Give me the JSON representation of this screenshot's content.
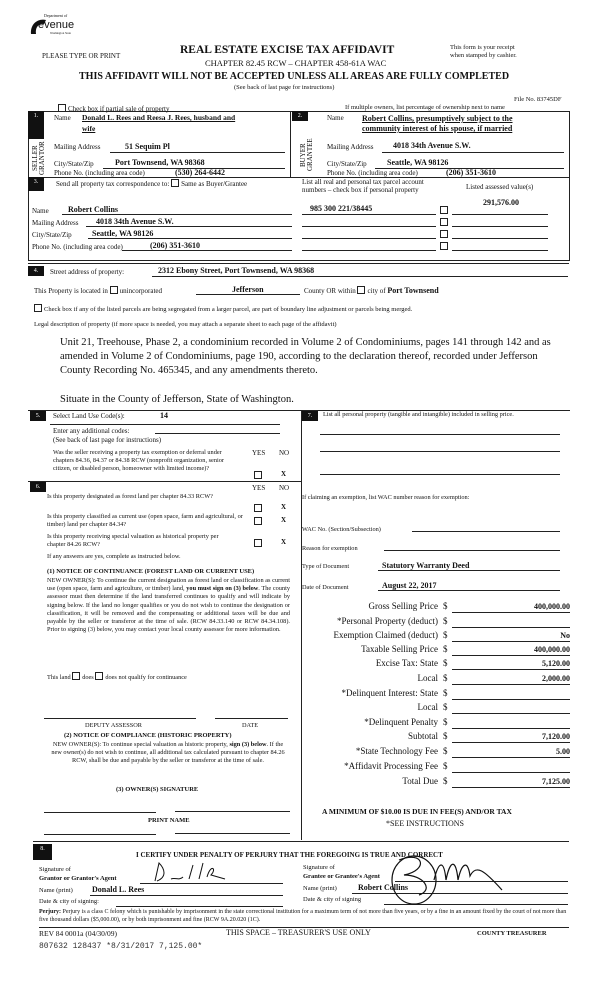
{
  "header": {
    "logo_line1": "Department of",
    "logo_word": "Revenue",
    "logo_line3": "Washington State",
    "please": "PLEASE TYPE OR PRINT",
    "title": "REAL ESTATE EXCISE TAX AFFIDAVIT",
    "chapter": "CHAPTER 82.45 RCW – CHAPTER 458-61A WAC",
    "warning": "THIS AFFIDAVIT WILL NOT BE ACCEPTED UNLESS ALL AREAS ARE FULLY COMPLETED",
    "see_back": "(See back of last page for instructions)",
    "receipt1": "This form is your receipt",
    "receipt2": "when stamped by cashier.",
    "file_no": "File No. 83745DF",
    "partial": "Check box if partial sale of property",
    "multiple": "If multiple owners, list percentage of ownership next to name"
  },
  "seller": {
    "num": "1.",
    "side": "SELLER GRANTOR",
    "name_label": "Name",
    "name1": "Donald L. Rees and Reesa J. Rees, husband and",
    "name2": "wife",
    "addr_label": "Mailing Address",
    "addr": "51 Sequim Pl",
    "city_label": "City/State/Zip",
    "city": "Port Townsend, WA 98368",
    "phone_label": "Phone No. (including area code)",
    "phone": "(530) 264-6442"
  },
  "buyer": {
    "num": "2.",
    "side": "BUYER GRANTEE",
    "name_label": "Name",
    "name1": "Robert Collins, presumptively subject to the",
    "name2": "community interest of his spouse, if married",
    "addr_label": "Mailing Address",
    "addr": "4018 34th Avenue S.W.",
    "city_label": "City/State/Zip",
    "city": "Seattle, WA 98126",
    "phone_label": "Phone No. (including area code)",
    "phone": "(206) 351-3610"
  },
  "section3": {
    "num": "3.",
    "send": "Send all property tax correspondence to:",
    "same": "Same as Buyer/Grantee",
    "list1": "List all real and personal tax parcel account",
    "list2": "numbers – check box if personal property",
    "assessed": "Listed assessed value(s)",
    "name_label": "Name",
    "name": "Robert  Collins",
    "addr_label": "Mailing Address",
    "addr": "4018 34th Avenue S.W.",
    "city_label": "City/State/Zip",
    "city": "Seattle, WA 98126",
    "phone_label": "Phone No. (including area code)",
    "phone": "(206) 351-3610",
    "parcel": "985 300 221/38445",
    "value": "291,576.00"
  },
  "section4": {
    "num": "4.",
    "street_label": "Street address of property:",
    "street": "2312 Ebony Street, Port Townsend, WA  98368",
    "located": "This Property is located in",
    "uninc": "unincorporated",
    "county": "Jefferson",
    "county_or": "County OR  within",
    "city_of": "city of",
    "city": "Port Townsend",
    "segregated": "Check box if any of the listed parcels are being segregated from a larger parcel, are part of boundary line adjustment or parcels being merged.",
    "legal_label": "Legal description of property (if more space is needed, you may attach a separate sheet to each page of the affidavit)",
    "legal": "Unit 21, Treehouse, Phase 2, a condominium recorded in Volume 2 of Condominiums, pages 141 through 142 and as amended in Volume 2 of Condominiums, page 190, according to the declaration thereof, recorded under Jefferson County Recording No. 465345, and any amendments thereto.",
    "situate": "Situate in the County of Jefferson, State of Washington."
  },
  "section5": {
    "num": "5.",
    "land_use": "Select Land Use Code(s):",
    "code": "14",
    "additional": "Enter any additional codes:",
    "see_back": "(See back of last page for instructions)",
    "yes": "YES",
    "no": "NO",
    "q1": "Was the seller receiving a property tax exemption or deferral under chapters 84.36, 84.37 or 84.38 RCW (nonprofit organization, senior citizen, or disabled person, homeowner with limited income)?",
    "a1": "X"
  },
  "section6": {
    "num": "6.",
    "yes": "YES",
    "no": "NO",
    "q1": "Is this property designated as forest land per chapter 84.33 RCW?",
    "q2": "Is this property classified as current use (open space, farm and agricultural, or timber) land per chapter 84.34?",
    "q3": "Is this property receiving special valuation as historical property per chapter 84.26 RCW?",
    "answers": [
      "X",
      "X",
      "X"
    ],
    "if_yes": "If any answers are yes, complete as instructed below.",
    "notice1_title": "(1) NOTICE OF CONTINUANCE (FOREST LAND OR CURRENT USE)",
    "notice1_a": "NEW OWNER(S): To continue the current designation as forest land or classification as current use (open space, farm and agriculture, or timber) land, ",
    "notice1_b": "you must sign on (3) below",
    "notice1_c": ". The county assessor must then determine if the land transferred continues to qualify and will indicate by signing below. If the land no longer qualifies or you do not wish to continue the designation or classification, it will be removed and the compensating or additional taxes will be due and payable by the seller or transferor at the time of sale. (RCW 84.33.140 or RCW 84.34.108). Prior to signing (3) below, you may contact your local county assessor for more information.",
    "this_land": "This land",
    "does": "does",
    "does_not": "does not  qualify for continuance",
    "deputy": "DEPUTY ASSESSOR",
    "date": "DATE",
    "notice2_title": "(2) NOTICE OF COMPLIANCE (HISTORIC PROPERTY)",
    "notice2_a": "NEW OWNER(S): To continue special valuation as historic property, ",
    "notice2_b": "sign (3) below",
    "notice2_c": ". If the new owner(s) do not wish to continue, all additional tax calculated pursuant to chapter 84.26 RCW, shall be due and payable by the seller or transferor at the time of sale.",
    "owner_sig": "(3)  OWNER(S) SIGNATURE",
    "print_name": "PRINT NAME"
  },
  "section7": {
    "num": "7.",
    "list": "List all personal property (tangible and intangible) included in selling price.",
    "exemption": "If claiming an exemption, list WAC number reason for exemption:",
    "wac": "WAC No. (Section/Subsection)",
    "reason": "Reason for exemption",
    "doc_type_label": "Type of Document",
    "doc_type": "Statutory Warranty Deed",
    "doc_date_label": "Date of Document",
    "doc_date": "August 22, 2017"
  },
  "fees": [
    {
      "label": "Gross Selling Price",
      "value": "400,000.00"
    },
    {
      "label": "*Personal Property (deduct)",
      "value": ""
    },
    {
      "label": "Exemption Claimed (deduct)",
      "value": "No"
    },
    {
      "label": "Taxable Selling Price",
      "value": "400,000.00"
    },
    {
      "label": "Excise Tax:  State",
      "value": "5,120.00"
    },
    {
      "label": "Local",
      "value": "2,000.00"
    },
    {
      "label": "*Delinquent Interest:  State",
      "value": ""
    },
    {
      "label": "Local",
      "value": ""
    },
    {
      "label": "*Delinquent Penalty",
      "value": ""
    },
    {
      "label": "Subtotal",
      "value": "7,120.00"
    },
    {
      "label": "*State Technology Fee",
      "value": "5.00"
    },
    {
      "label": "*Affidavit Processing Fee",
      "value": ""
    },
    {
      "label": "Total Due",
      "value": "7,125.00"
    }
  ],
  "dollar": "$",
  "minimum": "A MINIMUM OF $10.00 IS DUE IN FEE(S) AND/OR TAX",
  "see_instr": "*SEE INSTRUCTIONS",
  "section8": {
    "num": "8.",
    "certify": "I CERTIFY UNDER PENALTY OF PERJURY THAT THE FOREGOING IS TRUE AND CORRECT",
    "sig_of": "Signature of",
    "grantor": "Grantor or Grantor's Agent",
    "grantee": "Grantee or Grantee's Agent",
    "name_print": "Name (print)",
    "grantor_name": "Donald L. Rees",
    "grantee_name": "Robert Collins",
    "date_city": "Date & city of signing:",
    "date_city2": "Date & city of signing"
  },
  "footer": {
    "perjury_b": "Perjury:",
    "perjury": " Perjury is a class C felony which is punishable by imprisonment in the state correctional institution for a maximum term of not more than five years, or by a fine in an amount fixed by the court of not more than five thousand dollars ($5,000.00), or by both imprisonment and fine (RCW 9A.20.020 (1C).",
    "rev": "REV 84 0001a (04/30/09)",
    "treasurer_space": "THIS SPACE – TREASURER'S USE ONLY",
    "county_treasurer": "COUNTY TREASURER",
    "stamp": "807632 128437 *8/31/2017 7,125.00*"
  }
}
